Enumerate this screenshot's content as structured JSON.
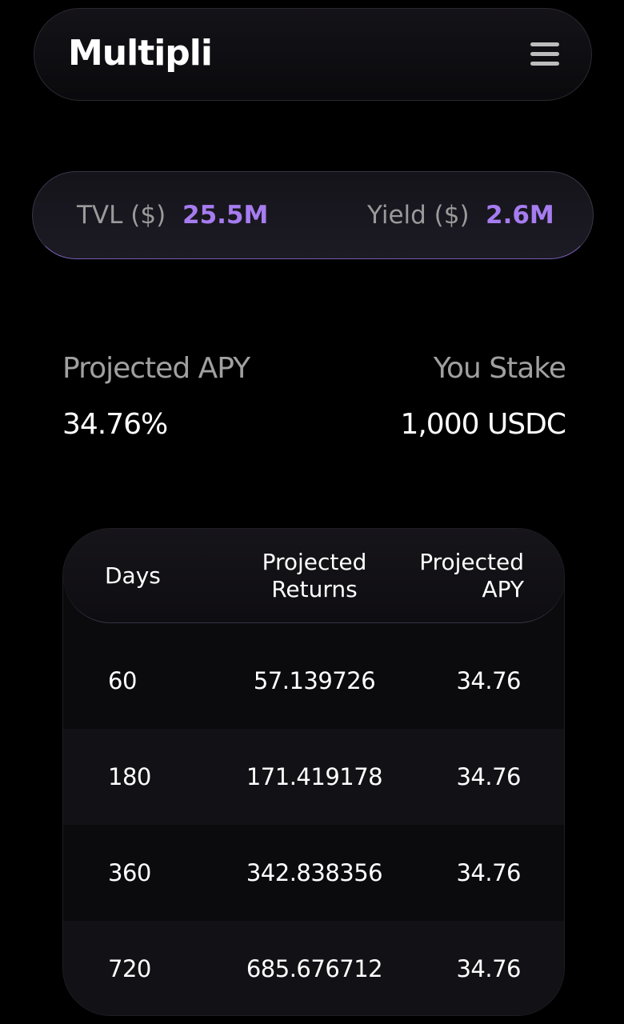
{
  "header": {
    "logo": "Multipli"
  },
  "stats": [
    {
      "label": "TVL ($)",
      "value": "25.5M"
    },
    {
      "label": "Yield ($)",
      "value": "2.6M"
    }
  ],
  "projection": {
    "apy_label": "Projected APY",
    "apy_value": "34.76%",
    "stake_label": "You Stake",
    "stake_value": "1,000 USDC"
  },
  "table": {
    "headers": [
      "Days",
      "Projected Returns",
      "Projected APY"
    ],
    "rows": [
      [
        "60",
        "57.139726",
        "34.76"
      ],
      [
        "180",
        "171.419178",
        "34.76"
      ],
      [
        "360",
        "342.838356",
        "34.76"
      ],
      [
        "720",
        "685.676712",
        "34.76"
      ]
    ]
  }
}
